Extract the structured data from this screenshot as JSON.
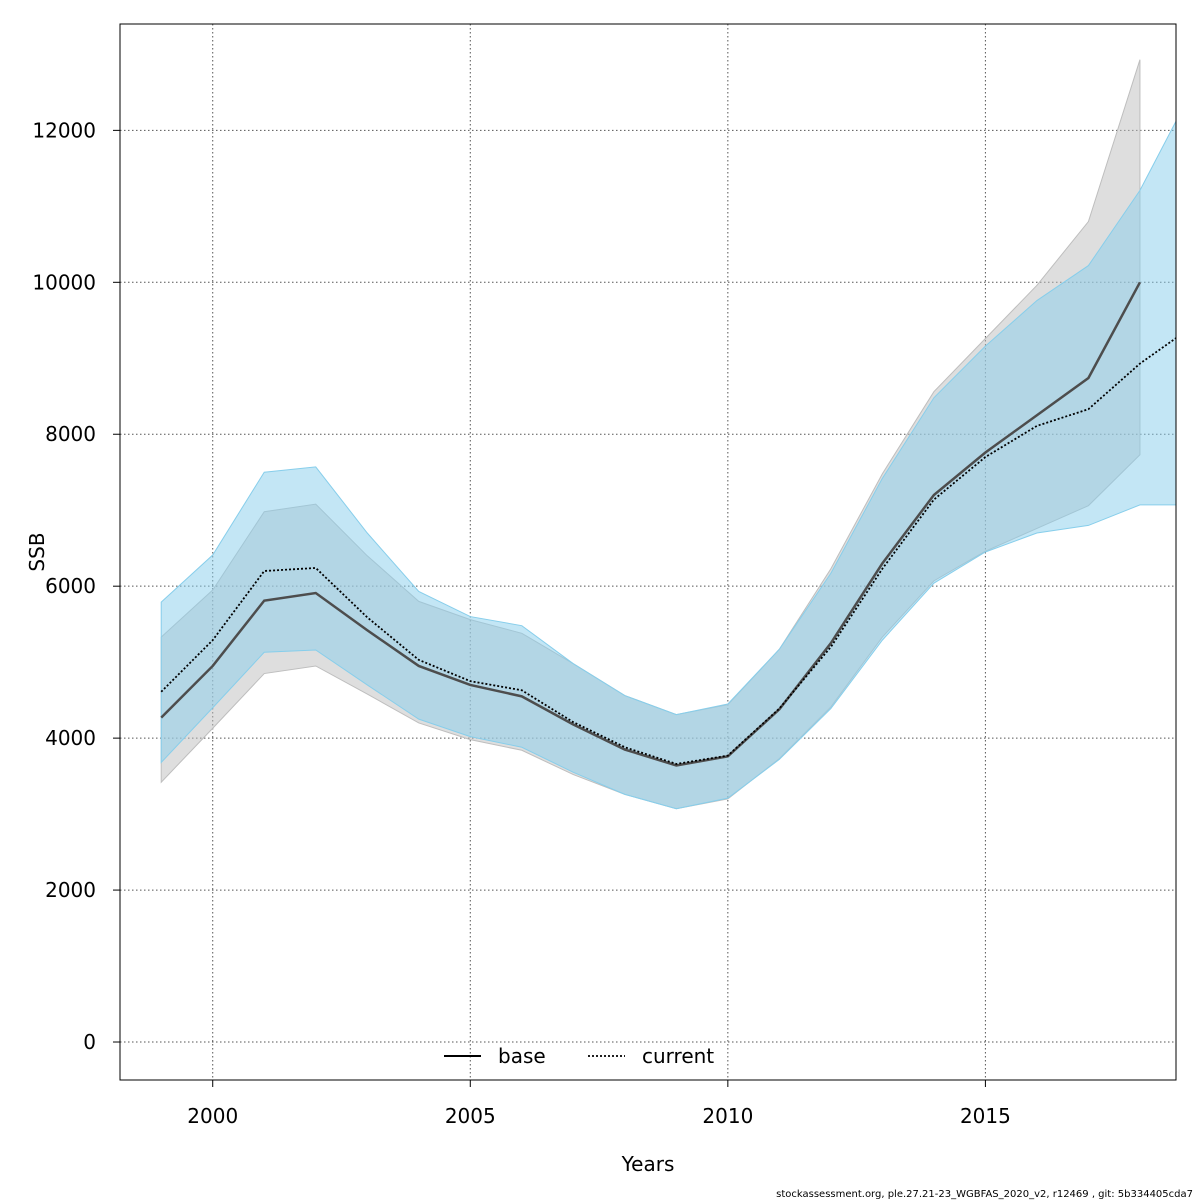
{
  "chart_data": {
    "type": "line",
    "xlabel": "Years",
    "ylabel": "SSB",
    "xlim": [
      1998.2,
      2018.7
    ],
    "ylim": [
      -500,
      13400
    ],
    "xticks": [
      2000,
      2005,
      2010,
      2015
    ],
    "yticks": [
      0,
      2000,
      4000,
      6000,
      8000,
      10000,
      12000
    ],
    "grid": true,
    "legend_position": "bottom",
    "footer": "stockassessment.org, ple.27.21-23_WGBFAS_2020_v2, r12469 , git: 5b334405cda7",
    "series": [
      {
        "name": "base",
        "line_style": "solid",
        "line_color": "#4d4d4d",
        "band_color": "#bebebe",
        "x": [
          1999,
          2000,
          2001,
          2002,
          2003,
          2004,
          2005,
          2006,
          2007,
          2008,
          2009,
          2010,
          2011,
          2012,
          2013,
          2014,
          2015,
          2016,
          2017,
          2018
        ],
        "values": [
          4270,
          4950,
          5810,
          5910,
          5420,
          4950,
          4700,
          4550,
          4180,
          3850,
          3640,
          3760,
          4380,
          5250,
          6300,
          7200,
          7760,
          8250,
          8740,
          10000
        ],
        "lower": [
          3420,
          4130,
          4850,
          4950,
          4580,
          4200,
          3980,
          3840,
          3520,
          3260,
          3070,
          3200,
          3730,
          4410,
          5330,
          6070,
          6460,
          6760,
          7060,
          7730
        ],
        "upper": [
          5330,
          5950,
          6980,
          7080,
          6400,
          5800,
          5560,
          5380,
          4980,
          4560,
          4310,
          4440,
          5170,
          6230,
          7480,
          8560,
          9260,
          9960,
          10800,
          12930
        ]
      },
      {
        "name": "current",
        "line_style": "dotted",
        "line_color": "#000000",
        "band_color": "#87ceeb",
        "x": [
          1999,
          2000,
          2001,
          2002,
          2003,
          2004,
          2005,
          2006,
          2007,
          2008,
          2009,
          2010,
          2011,
          2012,
          2013,
          2014,
          2015,
          2016,
          2017,
          2018,
          2019
        ],
        "values": [
          4610,
          5290,
          6200,
          6240,
          5590,
          5030,
          4750,
          4630,
          4210,
          3880,
          3660,
          3770,
          4390,
          5200,
          6230,
          7140,
          7700,
          8110,
          8330,
          8930,
          9410
        ],
        "lower": [
          3680,
          4400,
          5130,
          5160,
          4700,
          4250,
          4020,
          3880,
          3550,
          3260,
          3070,
          3210,
          3720,
          4390,
          5290,
          6040,
          6450,
          6700,
          6800,
          7070,
          7070
        ],
        "upper": [
          5790,
          6410,
          7500,
          7570,
          6700,
          5930,
          5600,
          5480,
          4980,
          4560,
          4310,
          4450,
          5170,
          6170,
          7420,
          8480,
          9160,
          9760,
          10220,
          11210,
          12510
        ]
      }
    ]
  }
}
